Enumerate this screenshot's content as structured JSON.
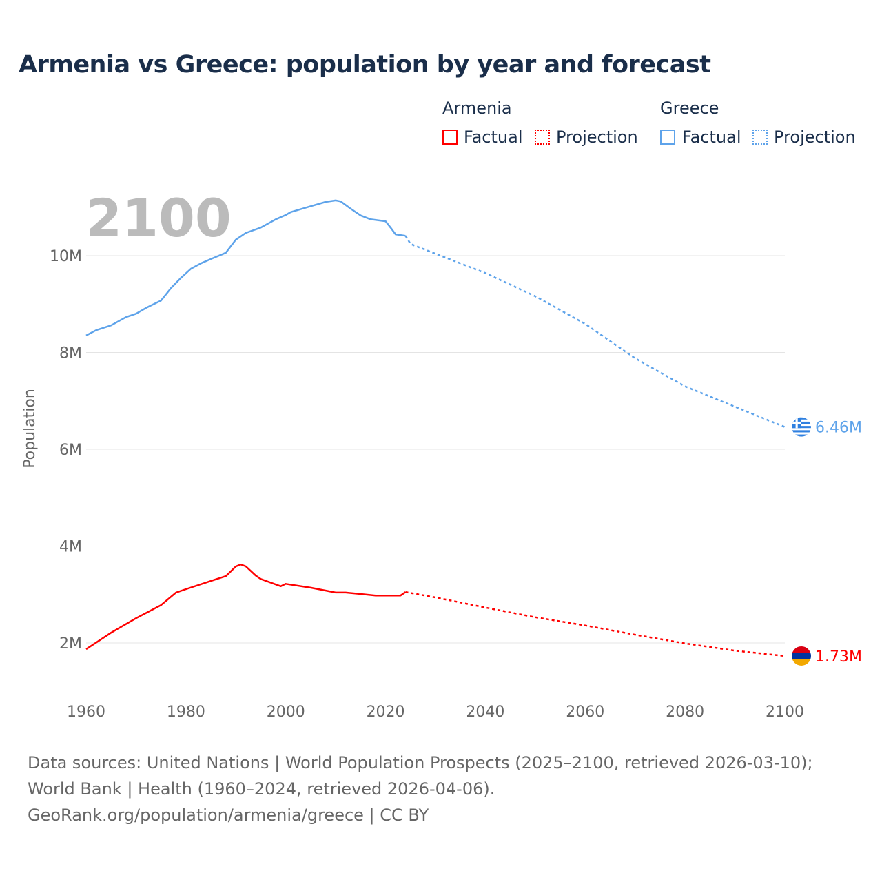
{
  "title": "Armenia vs Greece: population by year and forecast",
  "legend": {
    "armenia": {
      "name": "Armenia",
      "factual": "Factual",
      "projection": "Projection"
    },
    "greece": {
      "name": "Greece",
      "factual": "Factual",
      "projection": "Projection"
    }
  },
  "colors": {
    "armenia": "#ff0000",
    "greece": "#5ea3ea"
  },
  "footer": {
    "sources": "Data sources: United Nations | World Population Prospects (2025–2100, retrieved 2026-03-10); World Bank | Health (1960–2024, retrieved 2026-04-06).",
    "credit": "GeoRank.org/population/armenia/greece | CC BY"
  },
  "chart_data": {
    "type": "line",
    "title": "Armenia vs Greece: population by year and forecast",
    "year_label": "2100",
    "xlabel": "",
    "ylabel": "Population",
    "xlim": [
      1960,
      2100
    ],
    "ylim": [
      1,
      11.5
    ],
    "x_ticks": [
      "1960",
      "1980",
      "2000",
      "2020",
      "2040",
      "2060",
      "2080",
      "2100"
    ],
    "y_ticks": [
      {
        "v": 2,
        "label": "2M"
      },
      {
        "v": 4,
        "label": "4M"
      },
      {
        "v": 6,
        "label": "6M"
      },
      {
        "v": 8,
        "label": "8M"
      },
      {
        "v": 10,
        "label": "10M"
      }
    ],
    "grid": true,
    "series": [
      {
        "name": "Greece",
        "color": "#5ea3ea",
        "end_label": "6.46M",
        "factual": [
          [
            1960,
            8.35
          ],
          [
            1962,
            8.46
          ],
          [
            1965,
            8.56
          ],
          [
            1968,
            8.73
          ],
          [
            1970,
            8.8
          ],
          [
            1972,
            8.92
          ],
          [
            1974,
            9.02
          ],
          [
            1975,
            9.07
          ],
          [
            1977,
            9.33
          ],
          [
            1979,
            9.54
          ],
          [
            1981,
            9.73
          ],
          [
            1983,
            9.84
          ],
          [
            1985,
            9.93
          ],
          [
            1988,
            10.06
          ],
          [
            1990,
            10.33
          ],
          [
            1992,
            10.47
          ],
          [
            1995,
            10.58
          ],
          [
            1998,
            10.75
          ],
          [
            2000,
            10.84
          ],
          [
            2001,
            10.9
          ],
          [
            2005,
            11.02
          ],
          [
            2008,
            11.11
          ],
          [
            2010,
            11.14
          ],
          [
            2011,
            11.12
          ],
          [
            2013,
            10.97
          ],
          [
            2015,
            10.83
          ],
          [
            2017,
            10.75
          ],
          [
            2020,
            10.71
          ],
          [
            2021,
            10.58
          ],
          [
            2022,
            10.44
          ],
          [
            2024,
            10.41
          ]
        ],
        "projection": [
          [
            2024,
            10.41
          ],
          [
            2025,
            10.24
          ],
          [
            2030,
            10.04
          ],
          [
            2040,
            9.64
          ],
          [
            2050,
            9.16
          ],
          [
            2060,
            8.59
          ],
          [
            2070,
            7.88
          ],
          [
            2080,
            7.3
          ],
          [
            2090,
            6.88
          ],
          [
            2100,
            6.46
          ]
        ]
      },
      {
        "name": "Armenia",
        "color": "#ff0000",
        "end_label": "1.73M",
        "factual": [
          [
            1960,
            1.87
          ],
          [
            1965,
            2.21
          ],
          [
            1970,
            2.51
          ],
          [
            1975,
            2.78
          ],
          [
            1978,
            3.04
          ],
          [
            1980,
            3.11
          ],
          [
            1985,
            3.28
          ],
          [
            1988,
            3.38
          ],
          [
            1990,
            3.58
          ],
          [
            1991,
            3.62
          ],
          [
            1992,
            3.58
          ],
          [
            1994,
            3.39
          ],
          [
            1995,
            3.32
          ],
          [
            1999,
            3.17
          ],
          [
            2000,
            3.22
          ],
          [
            2005,
            3.14
          ],
          [
            2010,
            3.04
          ],
          [
            2012,
            3.04
          ],
          [
            2015,
            3.01
          ],
          [
            2018,
            2.98
          ],
          [
            2023,
            2.98
          ],
          [
            2024,
            3.05
          ]
        ],
        "projection": [
          [
            2024,
            3.05
          ],
          [
            2030,
            2.94
          ],
          [
            2040,
            2.73
          ],
          [
            2050,
            2.53
          ],
          [
            2060,
            2.36
          ],
          [
            2070,
            2.17
          ],
          [
            2080,
            1.99
          ],
          [
            2090,
            1.84
          ],
          [
            2100,
            1.73
          ]
        ]
      }
    ]
  }
}
